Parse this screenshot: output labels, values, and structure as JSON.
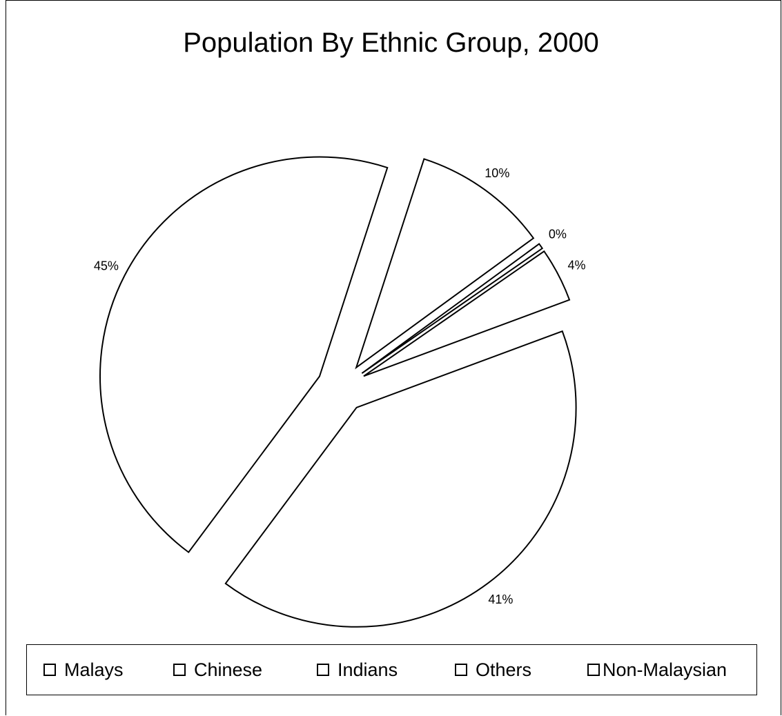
{
  "chart_data": {
    "type": "pie",
    "title": "Population By Ethnic Group, 2000",
    "series": [
      {
        "name": "Malays",
        "value": 45,
        "label": "45%"
      },
      {
        "name": "Chinese",
        "value": 41,
        "label": "41%"
      },
      {
        "name": "Indians",
        "value": 4,
        "label": "4%"
      },
      {
        "name": "Others",
        "value": 0.4,
        "label": "0%"
      },
      {
        "name": "Non-Malaysian",
        "value": 10,
        "label": "10%"
      }
    ],
    "legend_position": "bottom",
    "exploded": true,
    "fill_color": "#ffffff",
    "stroke_color": "#000000"
  }
}
